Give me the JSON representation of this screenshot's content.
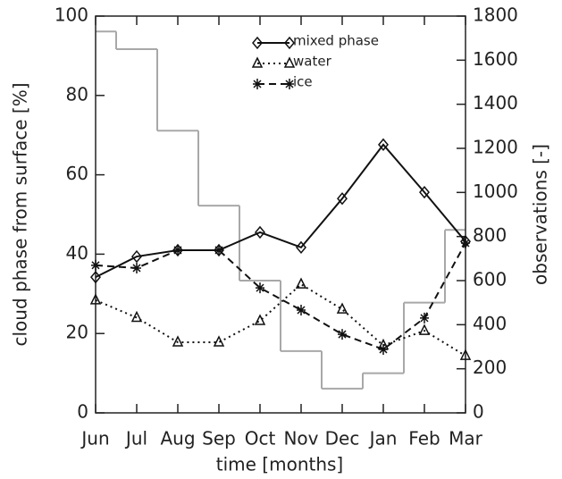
{
  "chart_data": {
    "type": "line",
    "x_label": "time [months]",
    "y_label": "cloud phase from surface [%]",
    "y2_label": "observations [-]",
    "categories": [
      "Jun",
      "Jul",
      "Aug",
      "Sep",
      "Oct",
      "Nov",
      "Dec",
      "Jan",
      "Feb",
      "Mar"
    ],
    "ylim": [
      0,
      100
    ],
    "yticks": [
      0,
      20,
      40,
      60,
      80,
      100
    ],
    "y2lim": [
      0,
      1800
    ],
    "y2ticks": [
      0,
      200,
      400,
      600,
      800,
      1000,
      1200,
      1400,
      1600,
      1800
    ],
    "series": [
      {
        "name": "mixed phase",
        "color": "#111111",
        "marker": "diamond",
        "linestyle": "solid",
        "values": [
          34.2,
          39.4,
          41,
          41,
          45.5,
          41.7,
          54,
          67.6,
          55.6,
          43.2
        ]
      },
      {
        "name": "water",
        "color": "#111111",
        "marker": "triangle",
        "linestyle": "dotted",
        "values": [
          28.4,
          24,
          17.8,
          17.8,
          23.2,
          32.4,
          26.1,
          17,
          20.7,
          14.4
        ]
      },
      {
        "name": "ice",
        "color": "#111111",
        "marker": "asterisk",
        "linestyle": "dashed",
        "values": [
          37.2,
          36.5,
          41,
          41,
          31.5,
          25.9,
          19.8,
          16,
          23.9,
          42.8
        ]
      },
      {
        "color": "#a8a8a8",
        "axis": "y2",
        "drawstyle": "steps-mid",
        "linestyle": "solid",
        "values": [
          1730,
          1650,
          1280,
          940,
          600,
          280,
          110,
          180,
          500,
          830
        ]
      }
    ]
  }
}
